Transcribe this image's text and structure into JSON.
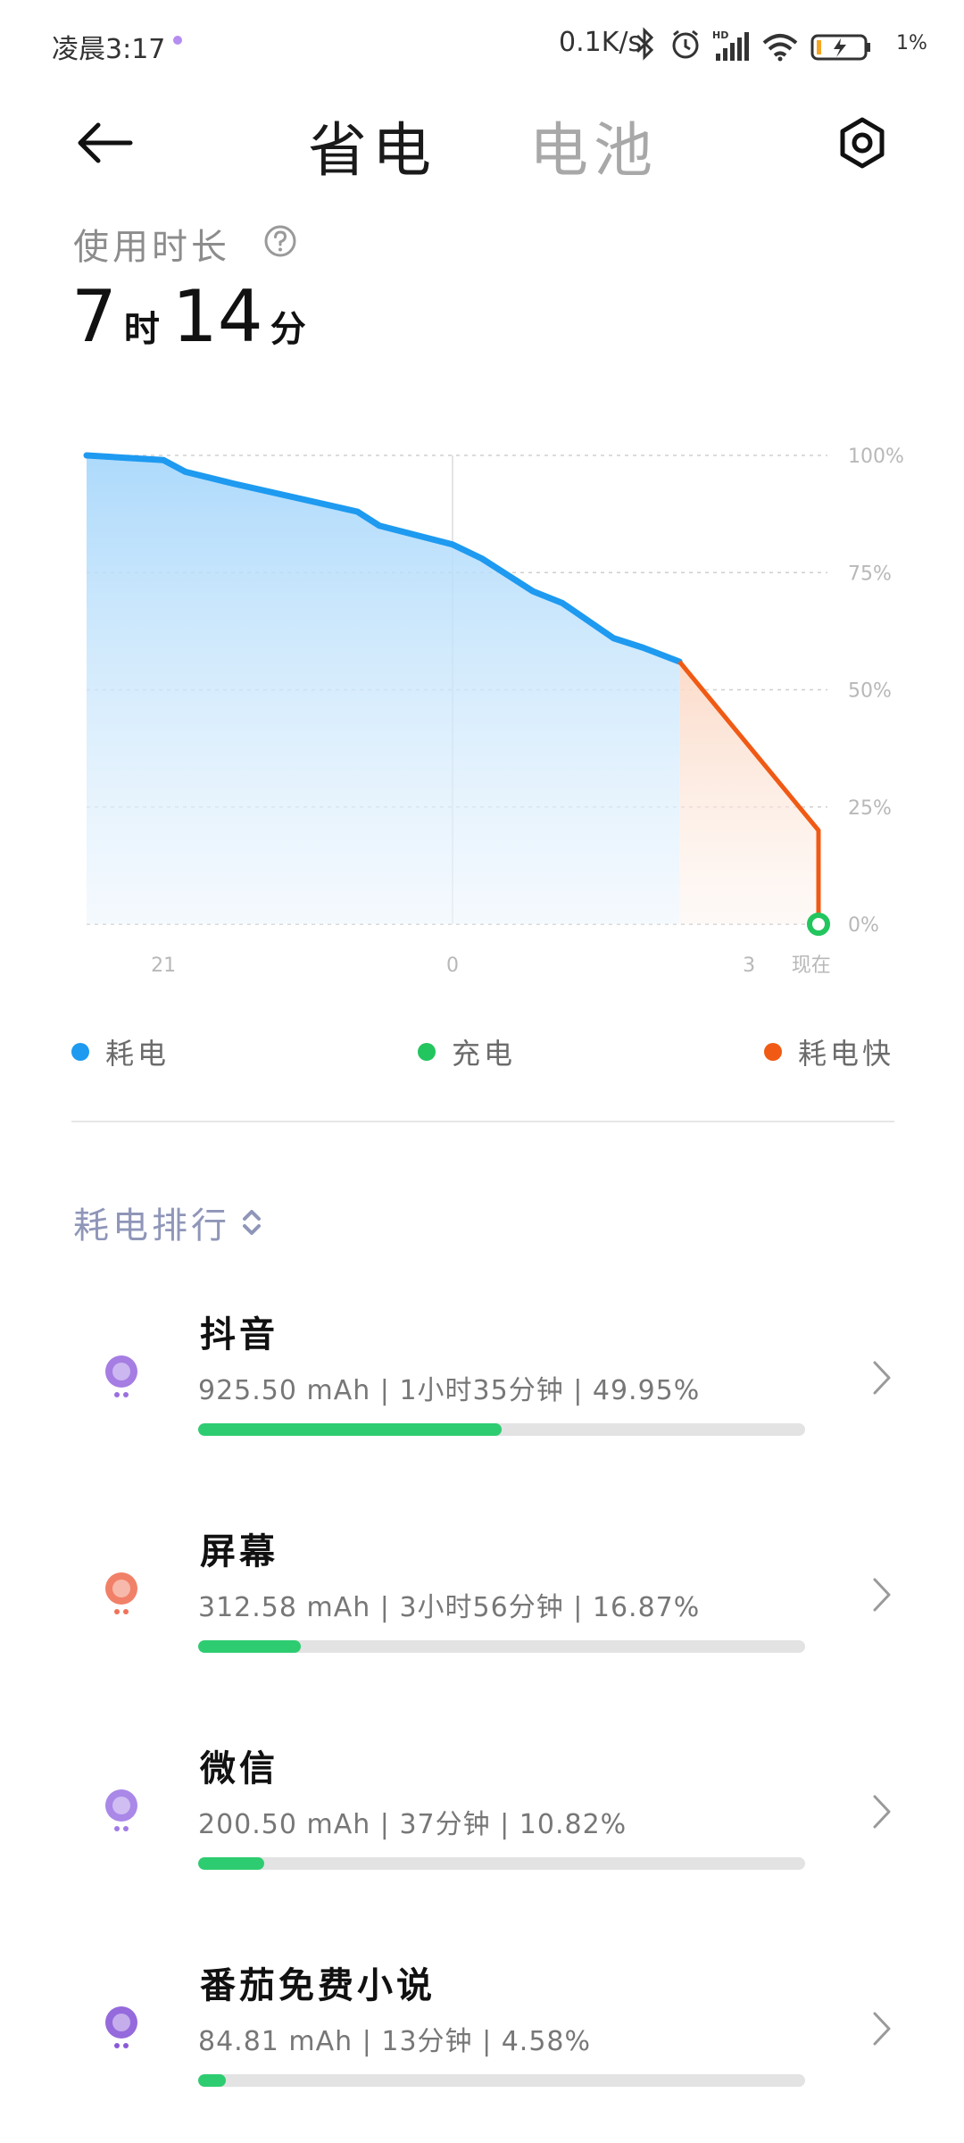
{
  "status_bar": {
    "time": "凌晨3:17",
    "network_speed": "0.1K/s",
    "battery_percent": "1%",
    "icons": [
      "bluetooth-icon",
      "alarm-icon",
      "hd-signal-icon",
      "wifi-icon",
      "battery-charging-icon"
    ]
  },
  "header": {
    "tabs": [
      {
        "label": "省电",
        "active": true
      },
      {
        "label": "电池",
        "active": false
      }
    ]
  },
  "usage": {
    "label": "使用时长",
    "hours": "7",
    "hours_unit": "时",
    "minutes": "14",
    "minutes_unit": "分"
  },
  "chart_data": {
    "type": "area",
    "y_ticks": [
      "100%",
      "75%",
      "50%",
      "25%",
      "0%"
    ],
    "x_ticks": [
      "21",
      "0",
      "3",
      "现在"
    ],
    "ylim": [
      0,
      100
    ],
    "series": [
      {
        "name": "耗电",
        "x": [
          0,
          0.105,
          0.135,
          0.2,
          0.37,
          0.4,
          0.5,
          0.54,
          0.61,
          0.65,
          0.72,
          0.76,
          0.81
        ],
        "values": [
          100,
          99,
          96.5,
          94,
          88,
          85,
          81,
          78,
          71,
          68.5,
          61,
          59,
          56
        ]
      },
      {
        "name": "耗电快",
        "x": [
          0.81,
          1.0,
          1.0
        ],
        "values": [
          56,
          20,
          0
        ]
      },
      {
        "name": "充电",
        "x": [
          1.0
        ],
        "values": [
          0
        ]
      }
    ],
    "colors": {
      "drain": "#1e9af0",
      "charging": "#22c55e",
      "fast_drain": "#f05a14"
    }
  },
  "legend": [
    {
      "label": "耗电",
      "color": "#1e9af0"
    },
    {
      "label": "充电",
      "color": "#22c55e"
    },
    {
      "label": "耗电快",
      "color": "#f05a14"
    }
  ],
  "ranking": {
    "title": "耗电排行",
    "apps": [
      {
        "name": "抖音",
        "stats": "925.50 mAh | 1小时35分钟 | 49.95%",
        "percent": 49.95,
        "icon": "douyin-icon",
        "icon_color": "#9b6fe0"
      },
      {
        "name": "屏幕",
        "stats": "312.58 mAh | 3小时56分钟 | 16.87%",
        "percent": 16.87,
        "icon": "screen-icon",
        "icon_color": "#f07258"
      },
      {
        "name": "微信",
        "stats": "200.50 mAh | 37分钟 | 10.82%",
        "percent": 10.82,
        "icon": "wechat-icon",
        "icon_color": "#a07be6"
      },
      {
        "name": "番茄免费小说",
        "stats": "84.81 mAh | 13分钟 | 4.58%",
        "percent": 4.58,
        "icon": "novel-icon",
        "icon_color": "#8a5ad8"
      }
    ]
  }
}
